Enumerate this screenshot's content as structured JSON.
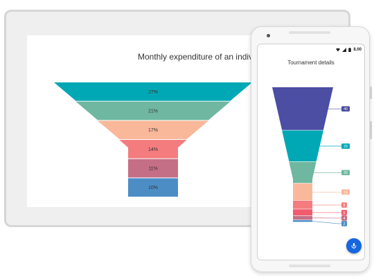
{
  "tablet": {
    "chart_title": "Monthly expenditure of an individual"
  },
  "phone": {
    "status_time": "8.00",
    "chart_title": "Tournament details",
    "fab_icon": "mic-icon"
  },
  "chart_data": [
    {
      "type": "funnel",
      "title": "Monthly expenditure of an individual",
      "values": [
        27,
        21,
        17,
        14,
        11,
        10
      ],
      "data_labels": [
        "27%",
        "21%",
        "17%",
        "14%",
        "11%",
        "10%"
      ],
      "colors": [
        "#00a8b5",
        "#6fb7a0",
        "#f9b89a",
        "#f47c7e",
        "#c56f87",
        "#4d8dc6"
      ]
    },
    {
      "type": "funnel",
      "title": "Tournament details",
      "values": [
        40,
        29,
        20,
        16,
        8,
        6,
        4,
        2
      ],
      "data_labels": [
        "40",
        "29",
        "20",
        "16",
        "8",
        "6",
        "4",
        "2"
      ],
      "colors": [
        "#4b4ea3",
        "#00a8b5",
        "#6fb7a0",
        "#f9b89a",
        "#f47c7e",
        "#f15b6e",
        "#c56f87",
        "#4d8dc6"
      ]
    }
  ]
}
